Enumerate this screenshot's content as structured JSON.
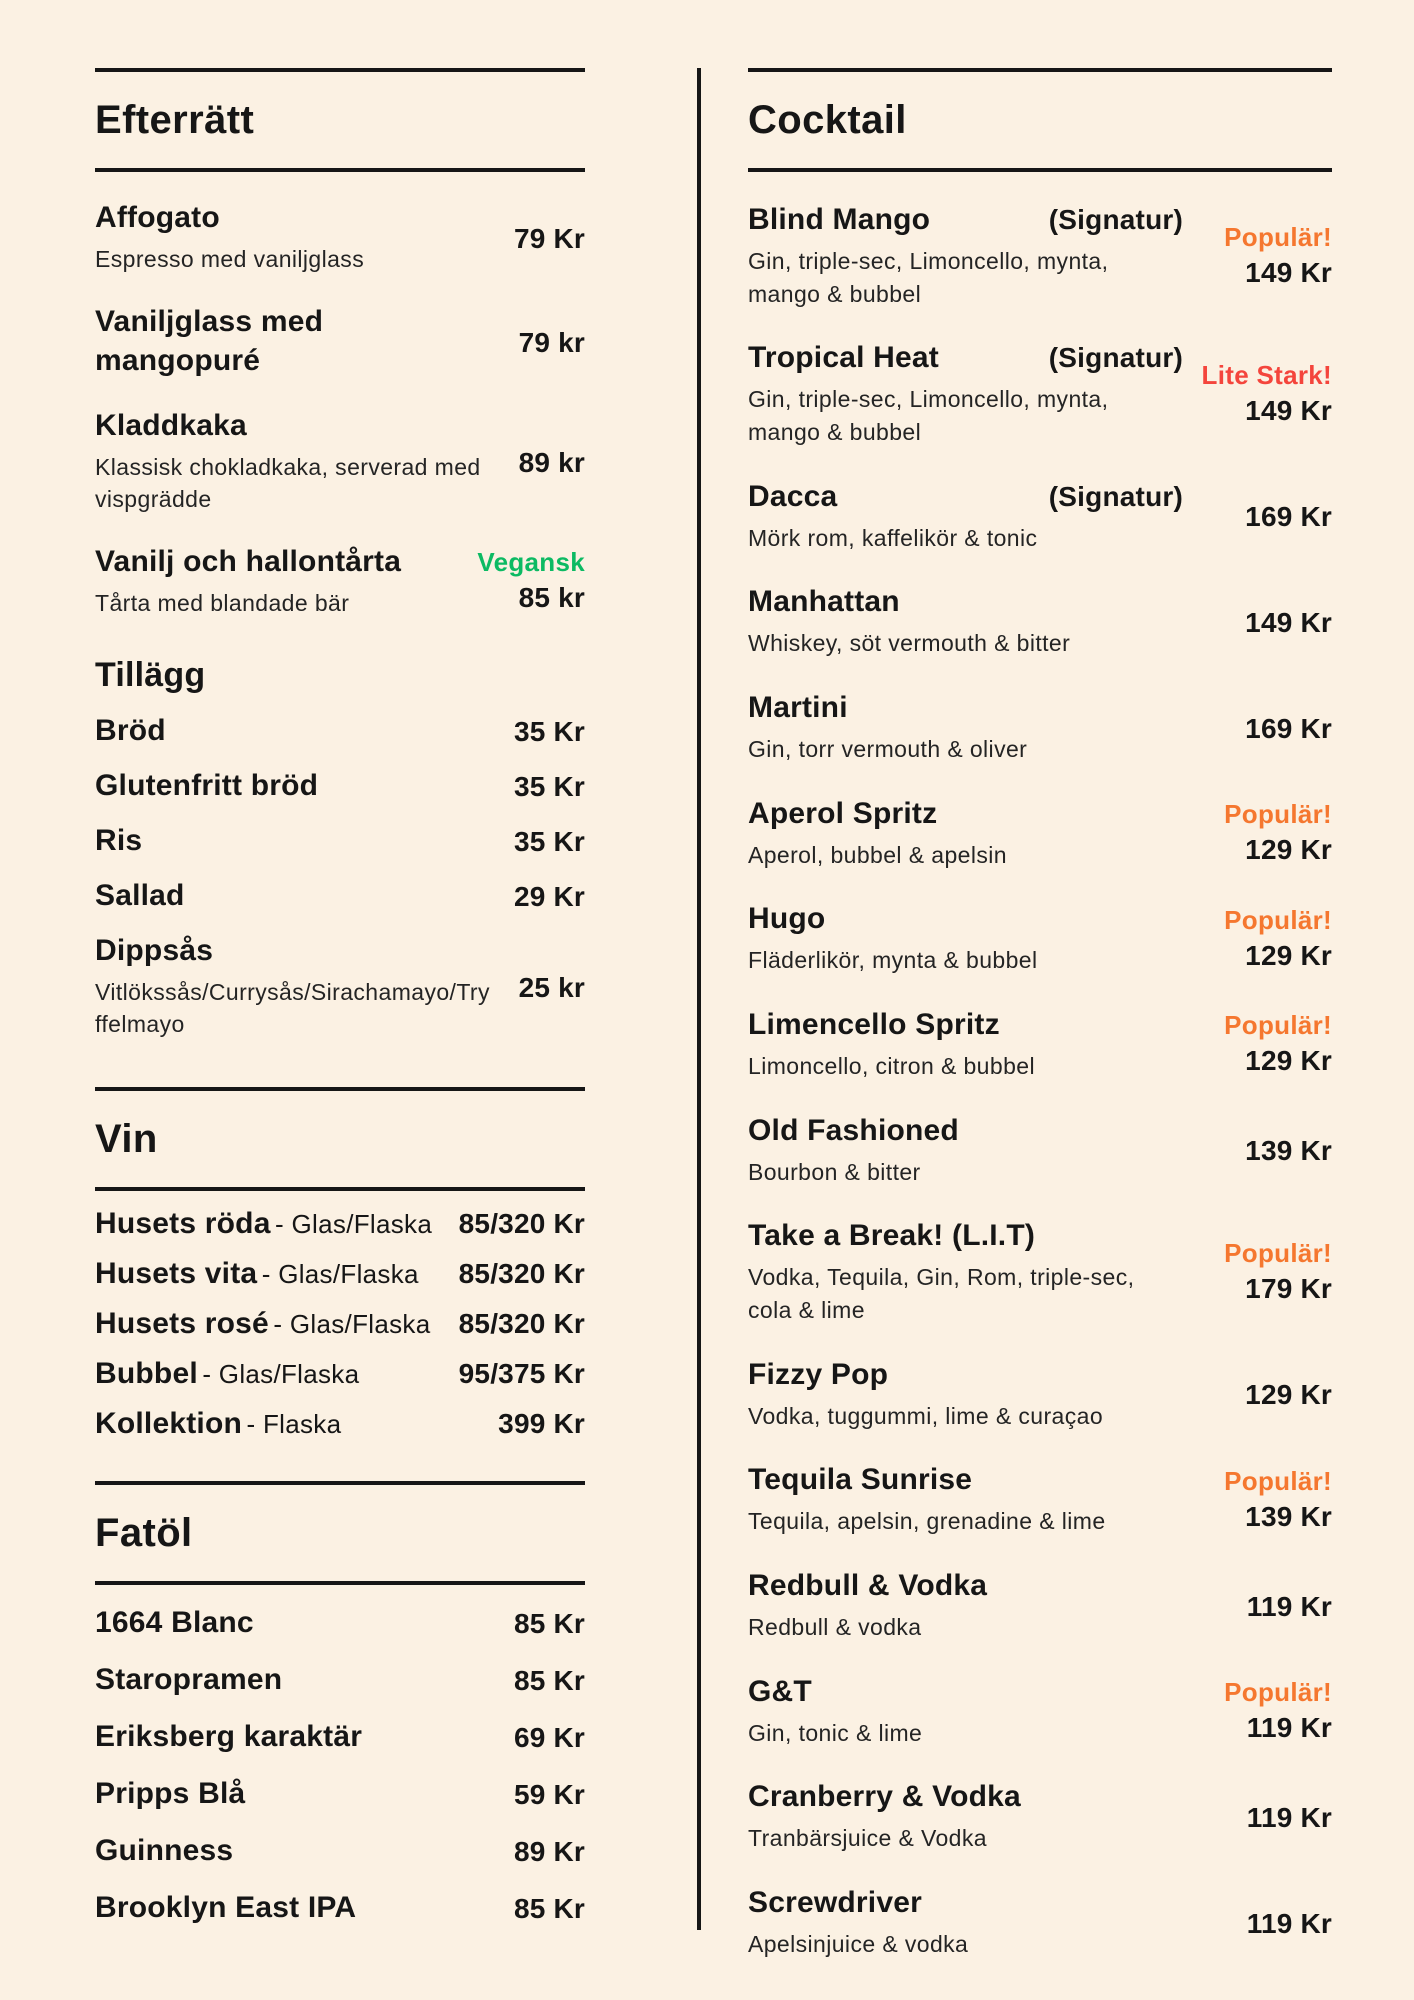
{
  "theme": {
    "background": "#FBF1E3",
    "ink": "#161616",
    "description_ink": "#242424",
    "accent_orange": "#F5772F",
    "accent_red": "#F4453C",
    "accent_green": "#0CBA63"
  },
  "dessert_section": {
    "title": "Efterrätt",
    "items": [
      {
        "name": "Affogato",
        "desc": "Espresso med vaniljglass",
        "price": "79 Kr"
      },
      {
        "name": "Vaniljglass med mangopuré",
        "price": "79 kr"
      },
      {
        "name": "Kladdkaka",
        "desc": "Klassisk chokladkaka, serverad med vispgrädde",
        "price": "89 kr"
      },
      {
        "name": "Vanilj och hallontårta",
        "desc": "Tårta med blandade bär",
        "price": "85 kr",
        "badge": {
          "text": "Vegansk",
          "color": "#0CBA63"
        }
      }
    ]
  },
  "addons_section": {
    "title": "Tillägg",
    "items": [
      {
        "name": "Bröd",
        "price": "35 Kr"
      },
      {
        "name": "Glutenfritt bröd",
        "price": "35 Kr"
      },
      {
        "name": "Ris",
        "price": "35 Kr"
      },
      {
        "name": "Sallad",
        "price": "29 Kr"
      },
      {
        "name": "Dippsås",
        "desc": "Vitlökssås/Currysås/Sirachamayo/Tryffelmayo",
        "price": "25 kr"
      }
    ]
  },
  "wine_section": {
    "title": "Vin",
    "items": [
      {
        "name": "Husets röda",
        "suffix": "- Glas/Flaska",
        "price": "85/320 Kr"
      },
      {
        "name": "Husets vita",
        "suffix": "- Glas/Flaska",
        "price": "85/320 Kr"
      },
      {
        "name": "Husets rosé",
        "suffix": "- Glas/Flaska",
        "price": "85/320 Kr"
      },
      {
        "name": "Bubbel",
        "suffix": "- Glas/Flaska",
        "price": "95/375 Kr"
      },
      {
        "name": "Kollektion",
        "suffix": "- Flaska",
        "price": "399 Kr"
      }
    ]
  },
  "beer_section": {
    "title": "Fatöl",
    "items": [
      {
        "name": "1664 Blanc",
        "price": "85 Kr"
      },
      {
        "name": "Staropramen",
        "price": "85 Kr"
      },
      {
        "name": "Eriksberg karaktär",
        "price": "69 Kr"
      },
      {
        "name": "Pripps Blå",
        "price": "59 Kr"
      },
      {
        "name": "Guinness",
        "price": "89 Kr"
      },
      {
        "name": "Brooklyn East IPA",
        "price": "85 Kr"
      }
    ]
  },
  "cocktail_section": {
    "title": "Cocktail",
    "items": [
      {
        "name": "Blind Mango",
        "tag": "(Signatur)",
        "desc": "Gin, triple-sec, Limoncello, mynta, mango & bubbel",
        "price": "149 Kr",
        "badge": {
          "text": "Populär!",
          "color": "#F5772F"
        }
      },
      {
        "name": "Tropical Heat",
        "tag": "(Signatur)",
        "desc": "Gin, triple-sec, Limoncello, mynta, mango & bubbel",
        "price": "149 Kr",
        "badge": {
          "text": "Lite Stark!",
          "color": "#F4453C"
        }
      },
      {
        "name": "Dacca",
        "tag": "(Signatur)",
        "desc": "Mörk rom, kaffelikör & tonic",
        "price": "169 Kr"
      },
      {
        "name": "Manhattan",
        "desc": "Whiskey, söt vermouth & bitter",
        "price": "149 Kr"
      },
      {
        "name": "Martini",
        "desc": "Gin, torr vermouth & oliver",
        "price": "169 Kr"
      },
      {
        "name": "Aperol Spritz",
        "desc": "Aperol, bubbel & apelsin",
        "price": "129 Kr",
        "badge": {
          "text": "Populär!",
          "color": "#F5772F"
        }
      },
      {
        "name": "Hugo",
        "desc": "Fläderlikör, mynta & bubbel",
        "price": "129 Kr",
        "badge": {
          "text": "Populär!",
          "color": "#F5772F"
        }
      },
      {
        "name": "Limencello Spritz",
        "desc": "Limoncello, citron & bubbel",
        "price": "129 Kr",
        "badge": {
          "text": "Populär!",
          "color": "#F5772F"
        }
      },
      {
        "name": "Old Fashioned",
        "desc": "Bourbon & bitter",
        "price": "139 Kr"
      },
      {
        "name": "Take a Break! (L.I.T)",
        "desc": "Vodka, Tequila, Gin, Rom, triple-sec, cola & lime",
        "price": "179 Kr",
        "badge": {
          "text": "Populär!",
          "color": "#F5772F"
        }
      },
      {
        "name": "Fizzy Pop",
        "desc": "Vodka, tuggummi, lime & curaçao",
        "price": "129 Kr"
      },
      {
        "name": "Tequila Sunrise",
        "desc": "Tequila, apelsin, grenadine & lime",
        "price": "139 Kr",
        "badge": {
          "text": "Populär!",
          "color": "#F5772F"
        }
      },
      {
        "name": "Redbull & Vodka",
        "desc": "Redbull & vodka",
        "price": "119 Kr"
      },
      {
        "name": "G&T",
        "desc": "Gin, tonic & lime",
        "price": "119 Kr",
        "badge": {
          "text": "Populär!",
          "color": "#F5772F"
        }
      },
      {
        "name": "Cranberry & Vodka",
        "desc": "Tranbärsjuice & Vodka",
        "price": "119 Kr"
      },
      {
        "name": "Screwdriver",
        "desc": "Apelsinjuice & vodka",
        "price": "119 Kr"
      }
    ]
  }
}
